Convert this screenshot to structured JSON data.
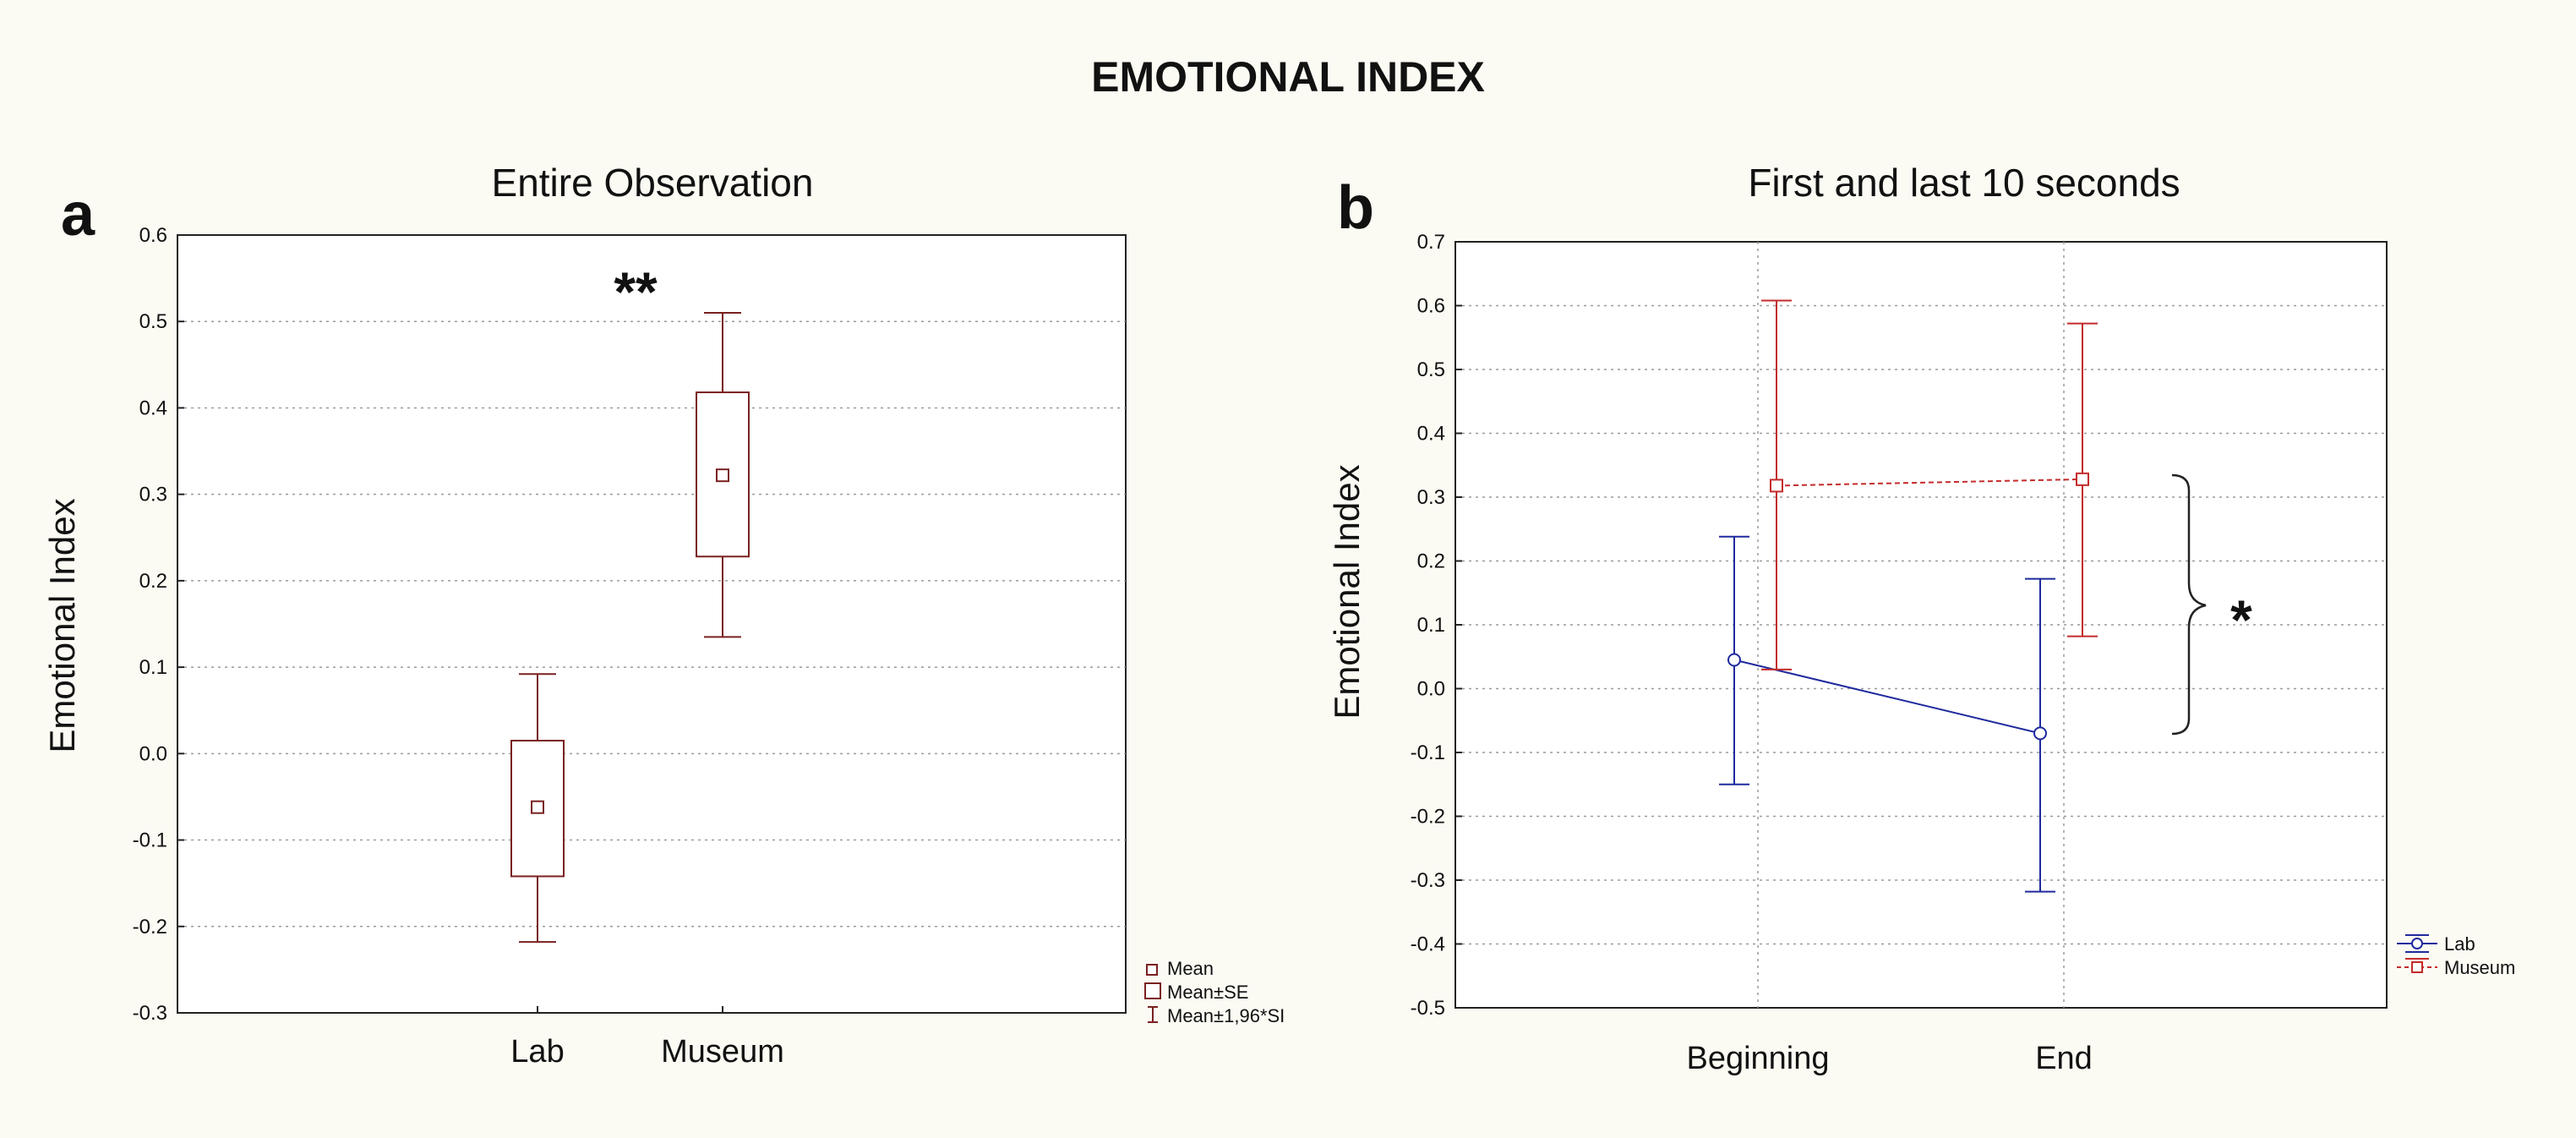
{
  "figure": {
    "title": "EMOTIONAL INDEX"
  },
  "chart_data": [
    {
      "panel": "a",
      "type": "box",
      "title": "Entire Observation",
      "xlabel": "",
      "ylabel": "Emotional Index",
      "ylim": [
        -0.3,
        0.6
      ],
      "yticks": [
        "-0.3",
        "-0.2",
        "-0.1",
        "0.0",
        "0.1",
        "0.2",
        "0.3",
        "0.4",
        "0.5",
        "0.6"
      ],
      "categories": [
        "Lab",
        "Museum"
      ],
      "mean": [
        -0.062,
        0.322
      ],
      "se_low": [
        -0.142,
        0.228
      ],
      "se_high": [
        0.015,
        0.418
      ],
      "ci_low": [
        -0.218,
        0.135
      ],
      "ci_high": [
        0.092,
        0.51
      ],
      "significance": "**",
      "legend": [
        "Mean",
        "Mean±SE",
        "Mean±1,96*SI"
      ],
      "color": "#7a2020",
      "grid": true,
      "legend_position": "bottom-right, outside"
    },
    {
      "panel": "b",
      "type": "line",
      "title": "First and last 10 seconds",
      "xlabel": "",
      "ylabel": "Emotional Index",
      "ylim": [
        -0.5,
        0.7
      ],
      "yticks": [
        "-0.5",
        "-0.4",
        "-0.3",
        "-0.2",
        "-0.1",
        "0.0",
        "0.1",
        "0.2",
        "0.3",
        "0.4",
        "0.5",
        "0.6",
        "0.7"
      ],
      "categories": [
        "Beginning",
        "End"
      ],
      "series": [
        {
          "name": "Lab",
          "color": "#1f2a9e",
          "values": [
            0.045,
            -0.07
          ],
          "ci_low": [
            -0.15,
            -0.318
          ],
          "ci_high": [
            0.238,
            0.172
          ]
        },
        {
          "name": "Museum",
          "color": "#c42b2b",
          "values": [
            0.318,
            0.328
          ],
          "ci_low": [
            0.03,
            0.082
          ],
          "ci_high": [
            0.608,
            0.572
          ]
        }
      ],
      "significance": "*",
      "grid": true,
      "legend_position": "bottom-right, outside"
    }
  ]
}
